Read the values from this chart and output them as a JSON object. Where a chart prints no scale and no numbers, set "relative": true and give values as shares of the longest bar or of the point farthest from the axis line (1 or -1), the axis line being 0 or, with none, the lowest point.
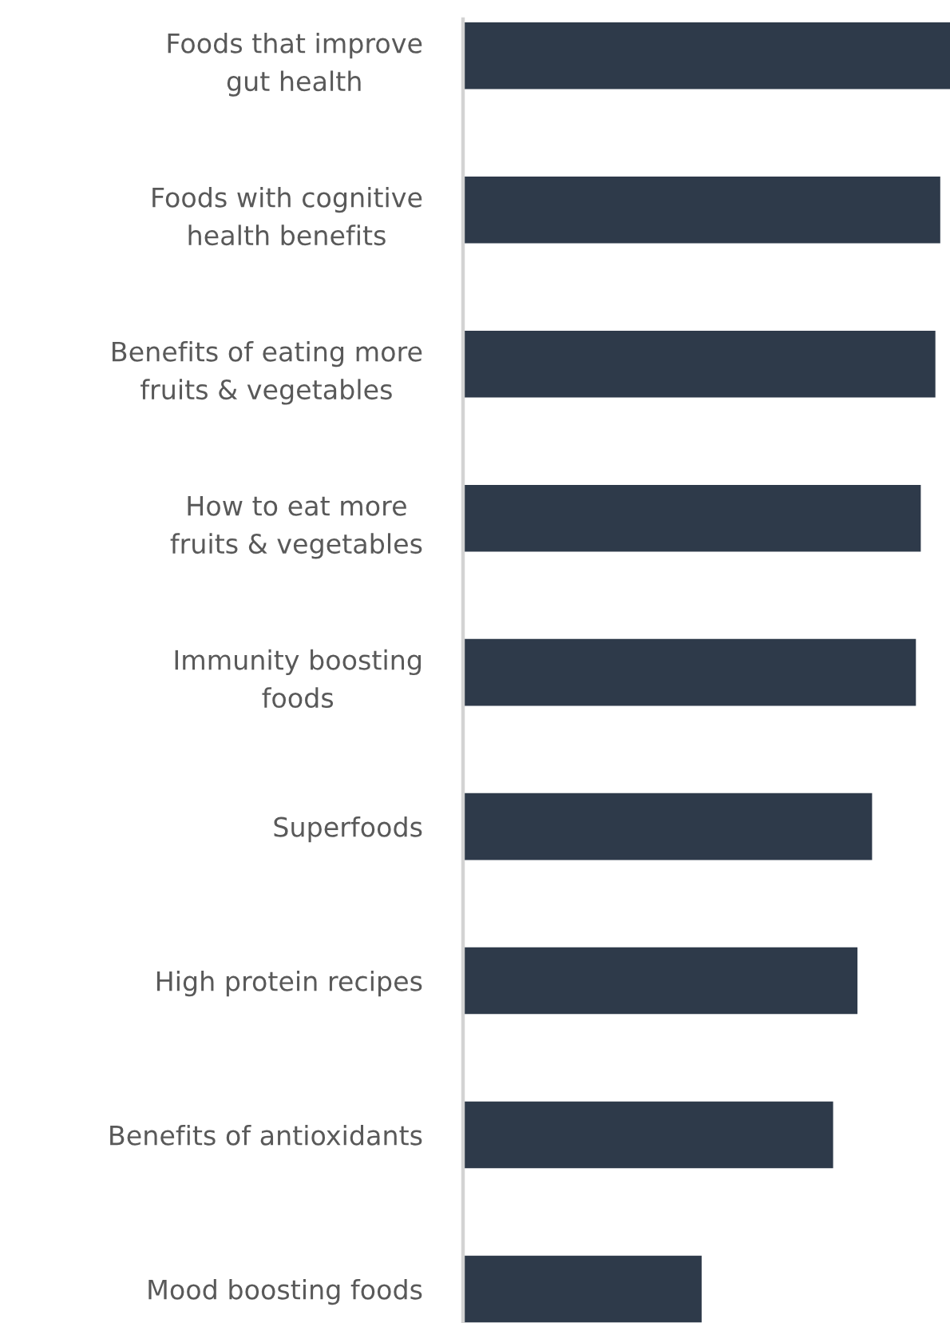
{
  "chart_data": {
    "type": "bar",
    "orientation": "horizontal",
    "relative": true,
    "categories": [
      "Foods that improve\ngut health",
      "Foods with cognitive\nhealth benefits",
      "Benefits of eating more\nfruits & vegetables",
      "How to eat more\nfruits & vegetables",
      "Immunity boosting\nfoods",
      "Superfoods",
      "High protein recipes",
      "Benefits of antioxidants",
      "Mood boosting foods"
    ],
    "values": [
      1,
      0.98,
      0.97,
      0.94,
      0.93,
      0.84,
      0.81,
      0.76,
      0.49
    ],
    "color": "#2e3a4a"
  }
}
